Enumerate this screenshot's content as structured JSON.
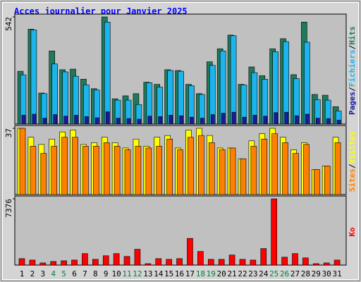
{
  "chart_data": [
    {
      "type": "bar",
      "title": "Acces journalier pour Janvier 2025",
      "separator": "/",
      "ylim": [
        0,
        542
      ],
      "yticks": [
        542
      ],
      "series": [
        {
          "name": "Hits",
          "color": "#1f7a5c",
          "values": [
            267,
            480,
            157,
            370,
            275,
            278,
            227,
            179,
            542,
            128,
            143,
            154,
            212,
            201,
            275,
            271,
            201,
            154,
            315,
            381,
            450,
            201,
            289,
            245,
            381,
            432,
            250,
            516,
            150,
            146,
            88
          ]
        },
        {
          "name": "Fichiers",
          "color": "#1cb4ec",
          "values": [
            249,
            476,
            154,
            304,
            264,
            242,
            198,
            172,
            516,
            121,
            121,
            99,
            209,
            187,
            271,
            267,
            194,
            150,
            297,
            370,
            447,
            198,
            260,
            227,
            366,
            417,
            230,
            414,
            124,
            121,
            66
          ]
        },
        {
          "name": "Pages",
          "color": "#1a1aa0",
          "values": [
            45,
            50,
            30,
            48,
            40,
            45,
            38,
            32,
            62,
            30,
            28,
            25,
            40,
            38,
            45,
            42,
            35,
            30,
            48,
            55,
            60,
            35,
            45,
            40,
            58,
            60,
            42,
            50,
            30,
            28,
            20
          ]
        }
      ]
    },
    {
      "type": "bar",
      "separator": "/",
      "ylim": [
        0,
        37
      ],
      "yticks": [
        37
      ],
      "series": [
        {
          "name": "Visites",
          "color": "#ffff00",
          "values": [
            37,
            32,
            28,
            31,
            35,
            36,
            28,
            29,
            32,
            29,
            26,
            31,
            27,
            32,
            33,
            26,
            36,
            37,
            33,
            26,
            26,
            20,
            30,
            34,
            37,
            32,
            25,
            29,
            14,
            16,
            32
          ]
        },
        {
          "name": "Sites",
          "color": "#ff8000",
          "values": [
            37,
            27,
            23,
            27,
            32,
            32,
            27,
            27,
            29,
            27,
            25,
            27,
            26,
            27,
            31,
            25,
            32,
            33,
            29,
            25,
            26,
            20,
            27,
            31,
            34,
            29,
            23,
            28,
            14,
            16,
            29
          ]
        }
      ]
    },
    {
      "type": "bar",
      "ylim": [
        0,
        7376
      ],
      "yticks": [
        7376
      ],
      "series": [
        {
          "name": "Ko",
          "color": "#ff0000",
          "values": [
            720,
            560,
            240,
            400,
            480,
            560,
            1280,
            640,
            1040,
            1280,
            960,
            1760,
            160,
            720,
            640,
            720,
            2970,
            1520,
            640,
            640,
            1120,
            640,
            560,
            1840,
            7376,
            880,
            1280,
            800,
            160,
            240,
            560
          ]
        }
      ],
      "categories": [
        "1",
        "2",
        "3",
        "4",
        "5",
        "6",
        "7",
        "8",
        "9",
        "10",
        "11",
        "12",
        "13",
        "14",
        "15",
        "16",
        "17",
        "18",
        "19",
        "20",
        "21",
        "22",
        "23",
        "24",
        "25",
        "26",
        "27",
        "28",
        "29",
        "30",
        "31"
      ],
      "category_colors": [
        "#000000",
        "#000000",
        "#000000",
        "#008040",
        "#008040",
        "#000000",
        "#000000",
        "#000000",
        "#000000",
        "#000000",
        "#008040",
        "#008040",
        "#000000",
        "#000000",
        "#000000",
        "#000000",
        "#000000",
        "#008040",
        "#008040",
        "#000000",
        "#000000",
        "#000000",
        "#000000",
        "#000000",
        "#008040",
        "#008040",
        "#000000",
        "#000000",
        "#000000",
        "#000000",
        "#000000"
      ]
    }
  ]
}
